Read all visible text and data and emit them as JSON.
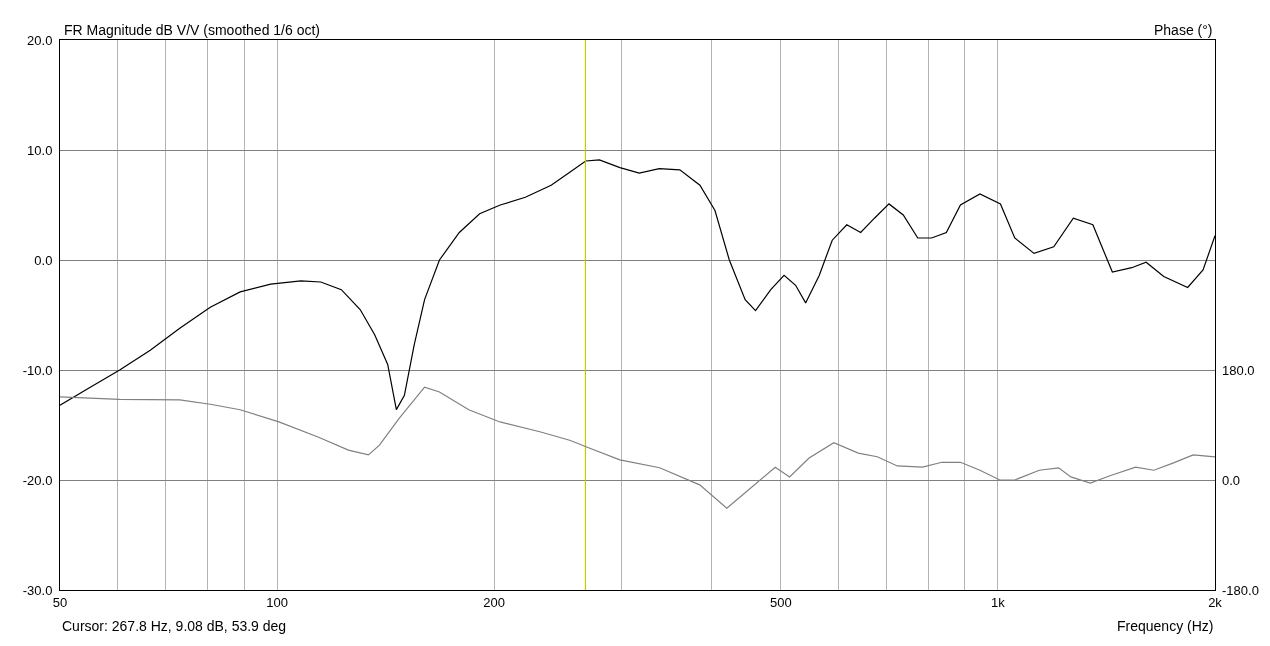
{
  "chart_data": {
    "type": "line",
    "title": "FR Magnitude dB V/V (smoothed 1/6 oct)",
    "xlabel": "Frequency (Hz)",
    "y2label": "Phase (°)",
    "annotations": [
      "Cursor: 267.8 Hz, 9.08 dB, 53.9 deg"
    ],
    "log": "x",
    "grid": true,
    "xlim": [
      50,
      2000
    ],
    "xticks": [
      50,
      {
        "value": 60,
        "label": null
      },
      {
        "value": 70,
        "label": null
      },
      {
        "value": 80,
        "label": null
      },
      {
        "value": 90,
        "label": null
      },
      100,
      200,
      {
        "value": 300,
        "label": null
      },
      {
        "value": 400,
        "label": null
      },
      500,
      {
        "value": 600,
        "label": null
      },
      {
        "value": 700,
        "label": null
      },
      {
        "value": 800,
        "label": null
      },
      {
        "value": 900,
        "label": null
      },
      {
        "value": 1000,
        "label": "1k"
      },
      {
        "value": 2000,
        "label": "2k"
      }
    ],
    "ylim": [
      -30,
      20
    ],
    "yticks": [
      {
        "value": -30,
        "label": "-30.0"
      },
      {
        "value": -20,
        "label": "-20.0"
      },
      {
        "value": -10,
        "label": "-10.0"
      },
      {
        "value": 0,
        "label": "0.0"
      },
      {
        "value": 10,
        "label": "10.0"
      },
      {
        "value": 20,
        "label": "20.0"
      }
    ],
    "y2lim": [
      -180,
      720
    ],
    "y2ticks": [
      {
        "value": -180,
        "label": "-180.0"
      },
      {
        "value": 0,
        "label": "0.0"
      },
      {
        "value": 180,
        "label": "180.0"
      }
    ],
    "ref_lines": [
      {
        "axis": "x",
        "value": 267.8,
        "color": "#c8c800"
      }
    ],
    "series": [
      {
        "color": "#000000",
        "axis": "y",
        "x": [
          50,
          55.0,
          60.5,
          66.7,
          73.3,
          80.8,
          88.9,
          98,
          107.9,
          115,
          122.8,
          130.4,
          136.6,
          142.4,
          146.4,
          150.2,
          155.0,
          160.2,
          168,
          179,
          191,
          204,
          221,
          240,
          255,
          268,
          280,
          299,
          318,
          339,
          362,
          386,
          405,
          424,
          446,
          461,
          484,
          505,
          524,
          541,
          565,
          589,
          617,
          645,
          674,
          706,
          739,
          774,
          809,
          848,
          887,
          944,
          1008,
          1055,
          1122,
          1195,
          1272,
          1354,
          1441,
          1533,
          1605,
          1698,
          1833,
          1925,
          2000
        ],
        "values": [
          -13.2,
          -11.6,
          -10.0,
          -8.2,
          -6.2,
          -4.3,
          -2.9,
          -2.2,
          -1.9,
          -2.0,
          -2.7,
          -4.5,
          -6.8,
          -9.5,
          -13.6,
          -12.3,
          -7.7,
          -3.6,
          0,
          2.5,
          4.2,
          5.0,
          5.7,
          6.8,
          8.0,
          9.0,
          9.1,
          8.4,
          7.9,
          8.3,
          8.2,
          6.8,
          4.5,
          0,
          -3.6,
          -4.6,
          -2.7,
          -1.4,
          -2.3,
          -3.9,
          -1.4,
          1.8,
          3.2,
          2.5,
          3.8,
          5.1,
          4.1,
          2.0,
          2.0,
          2.5,
          5.0,
          6.0,
          5.1,
          2.0,
          0.6,
          1.2,
          3.8,
          3.2,
          -1.1,
          -0.7,
          -0.2,
          -1.5,
          -2.5,
          -0.9,
          2.2
        ]
      },
      {
        "color": "#808080",
        "axis": "y2",
        "x": [
          50,
          60.5,
          73.3,
          80.8,
          88.9,
          100.6,
          114.2,
          125.6,
          133.9,
          138.7,
          147.7,
          160.2,
          168,
          184.5,
          203.8,
          231.5,
          254.6,
          271.6,
          298.9,
          339.4,
          385.7,
          420.6,
          446,
          491,
          514,
          547,
          592,
          640,
          680,
          725,
          786,
          836,
          887,
          944,
          1006,
          1055,
          1141,
          1214,
          1262,
          1343,
          1430,
          1552,
          1645,
          1752,
          1865,
          2000
        ],
        "values": [
          136,
          132,
          131,
          124,
          115,
          95,
          70,
          49,
          41,
          57,
          101,
          152,
          144,
          115,
          95,
          79,
          65,
          52,
          33,
          20,
          -8,
          -46,
          -21,
          21,
          5,
          36,
          61,
          44,
          38,
          23,
          21,
          29,
          29,
          16,
          0,
          0,
          16,
          20,
          5,
          -5,
          7,
          21,
          16,
          28,
          41,
          38
        ]
      }
    ]
  }
}
